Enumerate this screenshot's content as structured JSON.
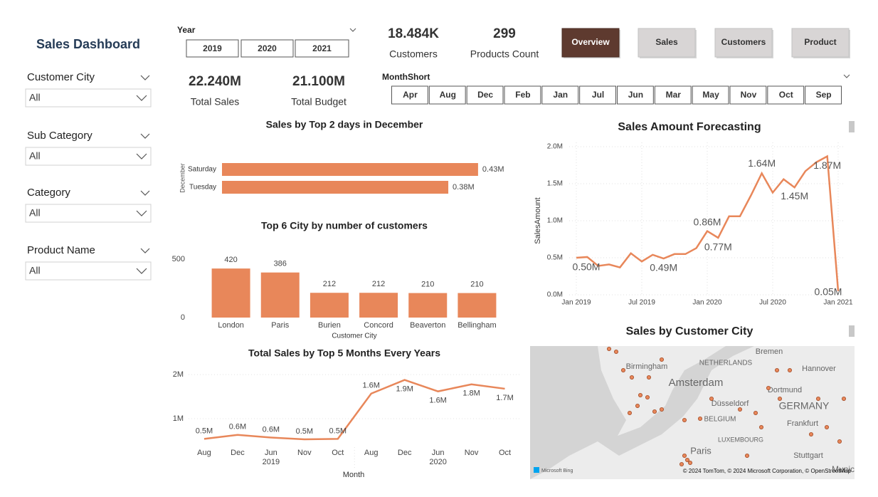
{
  "sidebar": {
    "title": "Sales Dashboard",
    "filters": [
      {
        "label": "Customer City",
        "value": "All"
      },
      {
        "label": "Sub Category",
        "value": "All"
      },
      {
        "label": "Category",
        "value": "All"
      },
      {
        "label": "Product Name",
        "value": "All"
      }
    ]
  },
  "year_slicer": {
    "label": "Year",
    "options": [
      "2019",
      "2020",
      "2021"
    ]
  },
  "kpis": [
    {
      "value": "22.240M",
      "label": "Total Sales"
    },
    {
      "value": "21.100M",
      "label": "Total Budget"
    },
    {
      "value": "18.484K",
      "label": "Customers"
    },
    {
      "value": "299",
      "label": "Products Count"
    }
  ],
  "nav_buttons": [
    "Overview",
    "Sales",
    "Customers",
    "Product"
  ],
  "month_slicer": {
    "label": "MonthShort",
    "options": [
      "Apr",
      "Aug",
      "Dec",
      "Feb",
      "Jan",
      "Jul",
      "Jun",
      "Mar",
      "May",
      "Nov",
      "Oct",
      "Sep"
    ]
  },
  "chart_data": [
    {
      "type": "hbar",
      "title": "Sales by Top 2 days in December",
      "y_label": "December",
      "categories": [
        "Saturday",
        "Tuesday"
      ],
      "values": [
        0.43,
        0.38
      ],
      "value_labels": [
        "0.43M",
        "0.38M"
      ],
      "color": "#e8875a"
    },
    {
      "type": "bar",
      "title": "Top 6 City by  number of customers",
      "x_label": "Customer City",
      "categories": [
        "London",
        "Paris",
        "Burien",
        "Concord",
        "Beaverton",
        "Bellingham"
      ],
      "values": [
        420,
        386,
        212,
        212,
        210,
        210
      ],
      "ylim": [
        0,
        500
      ],
      "yticks": [
        0,
        500
      ],
      "color": "#e8875a"
    },
    {
      "type": "line",
      "title": "Total Sales by Top 5 Months Every Years",
      "x_label": "Month",
      "categories": [
        "Aug",
        "Dec",
        "Jun",
        "Nov",
        "Oct",
        "Aug",
        "Dec",
        "Jun",
        "Nov",
        "Oct"
      ],
      "groups": [
        "2019",
        "2020"
      ],
      "values": [
        0.54,
        0.63,
        0.57,
        0.53,
        0.54,
        1.57,
        1.88,
        1.62,
        1.78,
        1.68
      ],
      "value_labels": [
        "0.5M",
        "0.6M",
        "0.6M",
        "0.5M",
        "0.5M",
        "1.6M",
        "1.9M",
        "1.6M",
        "1.8M",
        "1.7M"
      ],
      "ylim": [
        0.4,
        2.1
      ],
      "yticks": [
        {
          "value": 1,
          "label": "1M"
        },
        {
          "value": 2,
          "label": "2M"
        }
      ],
      "grid": true,
      "color": "#e8875a"
    },
    {
      "type": "timeline",
      "title": "Sales Amount Forecasting",
      "y_label": "SalesAmount",
      "x": [
        "2019-01",
        "2019-02",
        "2019-03",
        "2019-04",
        "2019-05",
        "2019-06",
        "2019-07",
        "2019-08",
        "2019-09",
        "2019-10",
        "2019-11",
        "2019-12",
        "2020-01",
        "2020-02",
        "2020-03",
        "2020-04",
        "2020-05",
        "2020-06",
        "2020-07",
        "2020-08",
        "2020-09",
        "2020-10",
        "2020-11",
        "2020-12",
        "2021-01"
      ],
      "values": [
        0.5,
        0.51,
        0.39,
        0.41,
        0.37,
        0.56,
        0.45,
        0.54,
        0.49,
        0.55,
        0.55,
        0.63,
        0.86,
        0.77,
        1.06,
        1.06,
        1.34,
        1.64,
        1.38,
        1.56,
        1.45,
        1.67,
        1.79,
        1.87,
        0.05
      ],
      "value_labels": [
        "0.50M",
        null,
        null,
        null,
        null,
        null,
        null,
        null,
        "0.49M",
        null,
        null,
        null,
        "0.86M",
        "0.77M",
        null,
        null,
        null,
        "1.64M",
        null,
        null,
        "1.45M",
        null,
        null,
        "1.87M",
        "0.05M"
      ],
      "xlim": [
        "2019-01",
        "2021-01"
      ],
      "xticks": [
        {
          "value": "2019-01",
          "label": "Jan 2019"
        },
        {
          "value": "2019-07",
          "label": "Jul 2019"
        },
        {
          "value": "2020-01",
          "label": "Jan 2020"
        },
        {
          "value": "2020-07",
          "label": "Jul 2020"
        },
        {
          "value": "2021-01",
          "label": "Jan 2021"
        }
      ],
      "ylim": [
        0,
        2
      ],
      "yticks": [
        {
          "value": 0,
          "label": "0.0M"
        },
        {
          "value": 0.5,
          "label": "0.5M"
        },
        {
          "value": 1,
          "label": "1.0M"
        },
        {
          "value": 1.5,
          "label": "1.5M"
        },
        {
          "value": 2,
          "label": "2.0M"
        }
      ],
      "grid": true,
      "color": "#e8875a"
    }
  ],
  "map": {
    "title": "Sales by Customer City",
    "labels": [
      "Birmingham",
      "NETHERLANDS",
      "Amsterdam",
      "Bremen",
      "Hannover",
      "Dortmund",
      "Düsseldorf",
      "GERMANY",
      "BELGIUM",
      "Frankfurt",
      "LUXEMBOURG",
      "Paris",
      "Stuttgart",
      "Munic"
    ],
    "attribution": "© 2024 TomTom, © 2024 Microsoft Corporation, © OpenStreetMap",
    "provider": "Microsoft Bing"
  }
}
